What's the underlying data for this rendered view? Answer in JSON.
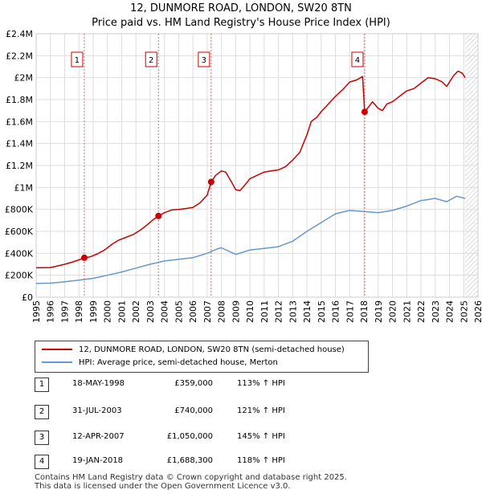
{
  "title_line1": "12, DUNMORE ROAD, LONDON, SW20 8TN",
  "title_line2": "Price paid vs. HM Land Registry's House Price Index (HPI)",
  "chart_data": {
    "type": "line",
    "title": "12, DUNMORE ROAD, LONDON, SW20 8TN — Price paid vs. HM Land Registry's House Price Index (HPI)",
    "xlabel": "",
    "ylabel": "",
    "xlim": [
      1995,
      2026
    ],
    "ylim": [
      0,
      2400000
    ],
    "x_ticks": [
      "1995",
      "1996",
      "1997",
      "1998",
      "1999",
      "2000",
      "2001",
      "2002",
      "2003",
      "2004",
      "2005",
      "2006",
      "2007",
      "2008",
      "2009",
      "2010",
      "2011",
      "2012",
      "2013",
      "2014",
      "2015",
      "2016",
      "2017",
      "2018",
      "2019",
      "2020",
      "2021",
      "2022",
      "2023",
      "2024",
      "2025",
      "2026"
    ],
    "y_ticks": [
      {
        "value": 0,
        "label": "£0"
      },
      {
        "value": 200000,
        "label": "£200K"
      },
      {
        "value": 400000,
        "label": "£400K"
      },
      {
        "value": 600000,
        "label": "£600K"
      },
      {
        "value": 800000,
        "label": "£800K"
      },
      {
        "value": 1000000,
        "label": "£1M"
      },
      {
        "value": 1200000,
        "label": "£1.2M"
      },
      {
        "value": 1400000,
        "label": "£1.4M"
      },
      {
        "value": 1600000,
        "label": "£1.6M"
      },
      {
        "value": 1800000,
        "label": "£1.8M"
      },
      {
        "value": 2000000,
        "label": "£2M"
      },
      {
        "value": 2200000,
        "label": "£2.2M"
      },
      {
        "value": 2400000,
        "label": "£2.4M"
      }
    ],
    "grid": true,
    "future_hatch_from": 2025.1,
    "series": [
      {
        "name": "12, DUNMORE ROAD, LONDON, SW20 8TN (semi-detached house)",
        "color": "#cc0000",
        "points": [
          [
            1995.0,
            268000
          ],
          [
            1996.0,
            270000
          ],
          [
            1996.5,
            285000
          ],
          [
            1997.0,
            300000
          ],
          [
            1997.5,
            318000
          ],
          [
            1998.0,
            340000
          ],
          [
            1998.38,
            359000
          ],
          [
            1998.8,
            368000
          ],
          [
            1999.3,
            395000
          ],
          [
            1999.8,
            430000
          ],
          [
            2000.3,
            480000
          ],
          [
            2000.8,
            520000
          ],
          [
            2001.3,
            545000
          ],
          [
            2001.8,
            570000
          ],
          [
            2002.3,
            610000
          ],
          [
            2002.8,
            660000
          ],
          [
            2003.2,
            705000
          ],
          [
            2003.58,
            740000
          ],
          [
            2004.0,
            770000
          ],
          [
            2004.5,
            795000
          ],
          [
            2005.0,
            800000
          ],
          [
            2005.5,
            808000
          ],
          [
            2006.0,
            818000
          ],
          [
            2006.5,
            860000
          ],
          [
            2007.0,
            930000
          ],
          [
            2007.28,
            1050000
          ],
          [
            2007.6,
            1110000
          ],
          [
            2008.0,
            1150000
          ],
          [
            2008.3,
            1140000
          ],
          [
            2008.7,
            1050000
          ],
          [
            2009.0,
            980000
          ],
          [
            2009.3,
            970000
          ],
          [
            2009.7,
            1030000
          ],
          [
            2010.0,
            1080000
          ],
          [
            2010.5,
            1110000
          ],
          [
            2011.0,
            1140000
          ],
          [
            2011.5,
            1150000
          ],
          [
            2012.0,
            1160000
          ],
          [
            2012.5,
            1190000
          ],
          [
            2013.0,
            1250000
          ],
          [
            2013.5,
            1320000
          ],
          [
            2014.0,
            1480000
          ],
          [
            2014.3,
            1600000
          ],
          [
            2014.7,
            1640000
          ],
          [
            2015.0,
            1690000
          ],
          [
            2015.5,
            1760000
          ],
          [
            2016.0,
            1830000
          ],
          [
            2016.5,
            1890000
          ],
          [
            2017.0,
            1960000
          ],
          [
            2017.5,
            1980000
          ],
          [
            2017.9,
            2010000
          ],
          [
            2018.05,
            1688300
          ],
          [
            2018.3,
            1730000
          ],
          [
            2018.6,
            1780000
          ],
          [
            2019.0,
            1720000
          ],
          [
            2019.3,
            1700000
          ],
          [
            2019.6,
            1760000
          ],
          [
            2020.0,
            1780000
          ],
          [
            2020.5,
            1830000
          ],
          [
            2021.0,
            1880000
          ],
          [
            2021.5,
            1900000
          ],
          [
            2022.0,
            1950000
          ],
          [
            2022.5,
            2000000
          ],
          [
            2023.0,
            1990000
          ],
          [
            2023.5,
            1960000
          ],
          [
            2023.8,
            1920000
          ],
          [
            2024.0,
            1960000
          ],
          [
            2024.3,
            2020000
          ],
          [
            2024.6,
            2060000
          ],
          [
            2024.9,
            2040000
          ],
          [
            2025.1,
            2000000
          ]
        ]
      },
      {
        "name": "HPI: Average price, semi-detached house, Merton",
        "color": "#6699cc",
        "points": [
          [
            1995.0,
            125000
          ],
          [
            1996.0,
            128000
          ],
          [
            1997.0,
            140000
          ],
          [
            1998.0,
            155000
          ],
          [
            1999.0,
            172000
          ],
          [
            2000.0,
            200000
          ],
          [
            2001.0,
            230000
          ],
          [
            2002.0,
            265000
          ],
          [
            2003.0,
            300000
          ],
          [
            2004.0,
            330000
          ],
          [
            2005.0,
            345000
          ],
          [
            2006.0,
            360000
          ],
          [
            2007.0,
            400000
          ],
          [
            2007.7,
            440000
          ],
          [
            2008.0,
            450000
          ],
          [
            2008.5,
            420000
          ],
          [
            2009.0,
            390000
          ],
          [
            2009.5,
            410000
          ],
          [
            2010.0,
            430000
          ],
          [
            2011.0,
            445000
          ],
          [
            2012.0,
            460000
          ],
          [
            2013.0,
            510000
          ],
          [
            2014.0,
            600000
          ],
          [
            2015.0,
            680000
          ],
          [
            2016.0,
            760000
          ],
          [
            2017.0,
            790000
          ],
          [
            2018.0,
            780000
          ],
          [
            2019.0,
            770000
          ],
          [
            2020.0,
            790000
          ],
          [
            2021.0,
            830000
          ],
          [
            2022.0,
            880000
          ],
          [
            2023.0,
            900000
          ],
          [
            2023.8,
            870000
          ],
          [
            2024.5,
            920000
          ],
          [
            2025.1,
            900000
          ]
        ]
      }
    ],
    "sales": [
      {
        "n": "1",
        "x": 1998.38,
        "y": 359000
      },
      {
        "n": "2",
        "x": 2003.58,
        "y": 740000
      },
      {
        "n": "3",
        "x": 2007.28,
        "y": 1050000
      },
      {
        "n": "4",
        "x": 2018.05,
        "y": 1688300
      }
    ],
    "legend_position": "below"
  },
  "legend": {
    "property": "12, DUNMORE ROAD, LONDON, SW20 8TN (semi-detached house)",
    "hpi": "HPI: Average price, semi-detached house, Merton"
  },
  "colors": {
    "property": "#cc0000",
    "hpi": "#6699cc"
  },
  "sales_table": [
    {
      "n": "1",
      "date": "18-MAY-1998",
      "price": "£359,000",
      "hpi": "113% ↑ HPI"
    },
    {
      "n": "2",
      "date": "31-JUL-2003",
      "price": "£740,000",
      "hpi": "121% ↑ HPI"
    },
    {
      "n": "3",
      "date": "12-APR-2007",
      "price": "£1,050,000",
      "hpi": "145% ↑ HPI"
    },
    {
      "n": "4",
      "date": "19-JAN-2018",
      "price": "£1,688,300",
      "hpi": "118% ↑ HPI"
    }
  ],
  "footer": {
    "line1": "Contains HM Land Registry data © Crown copyright and database right 2025.",
    "line2": "This data is licensed under the Open Government Licence v3.0."
  }
}
